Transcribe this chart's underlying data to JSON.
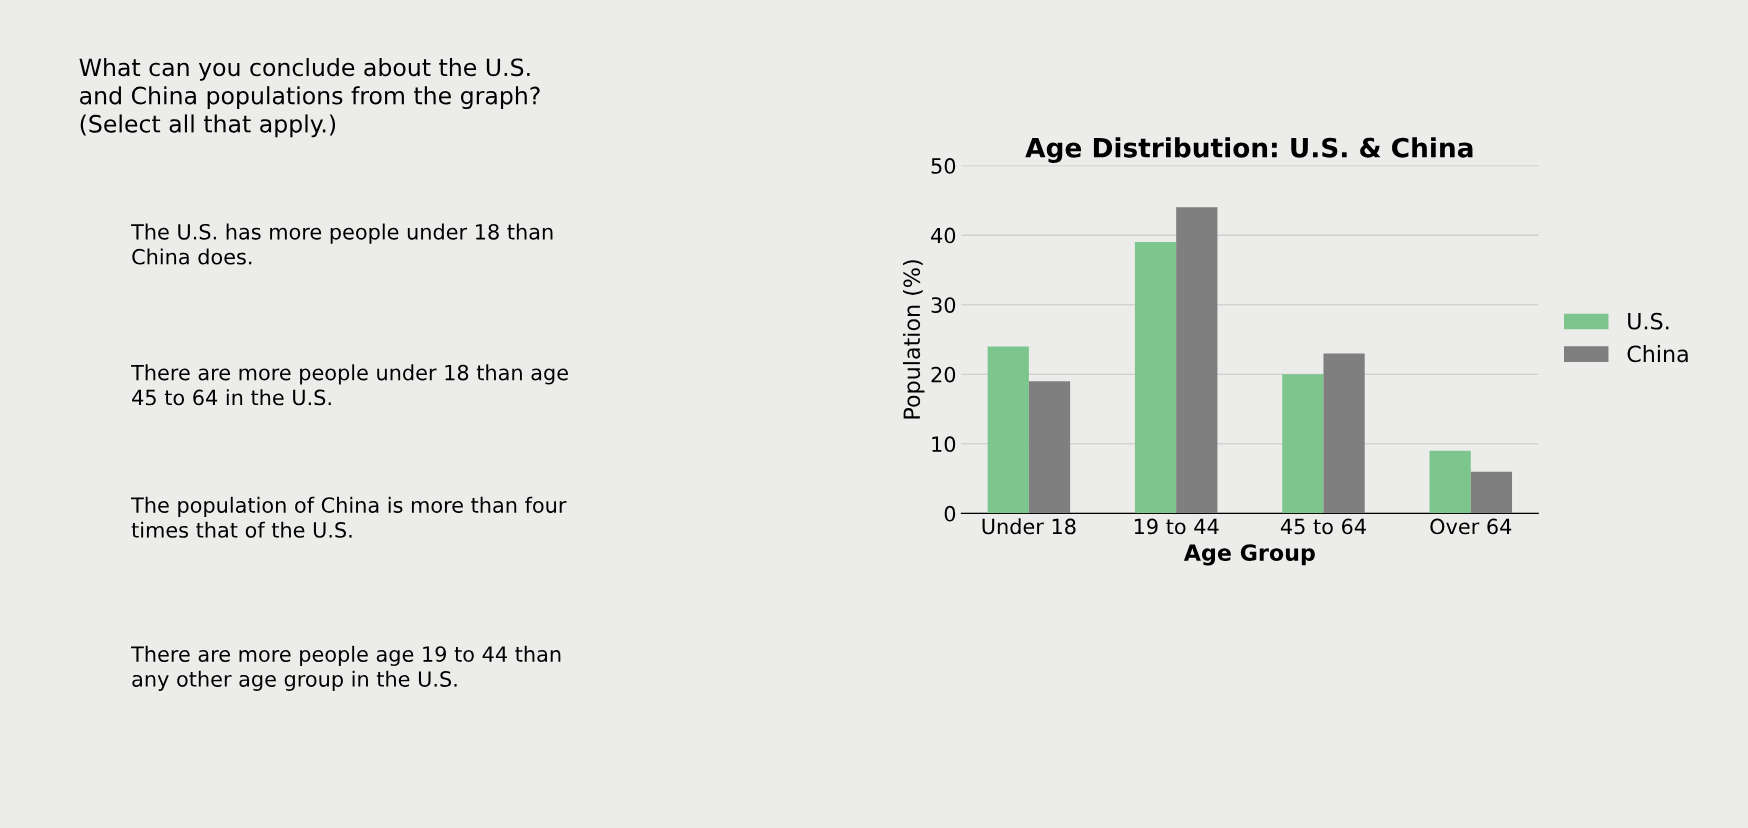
{
  "chart_data": {
    "type": "bar",
    "title": "Age Distribution: U.S. & China",
    "xlabel": "Age Group",
    "ylabel": "Population (%)",
    "categories": [
      "Under 18",
      "19 to 44",
      "45 to 64",
      "Over 64"
    ],
    "series": [
      {
        "name": "U.S.",
        "color": "#7cc68e",
        "values": [
          24,
          39,
          20,
          9
        ]
      },
      {
        "name": "China",
        "color": "#7f7f7f",
        "values": [
          19,
          44,
          23,
          6
        ]
      }
    ],
    "ylim": [
      0,
      50
    ],
    "yticks": [
      0,
      10,
      20,
      30,
      40,
      50
    ],
    "grid": "y",
    "legend": "right",
    "annotations": [
      "What can you conclude about the U.S.\nand China populations from the graph?\n(Select all that apply.)",
      "The U.S. has more people under 18 than\nChina does.",
      "There are more people under 18 than age\n45 to 64 in the U.S.",
      "The population of China is more than four\ntimes that of the U.S.",
      "There are more people age 19 to 44 than\nany other age group in the U.S."
    ]
  }
}
